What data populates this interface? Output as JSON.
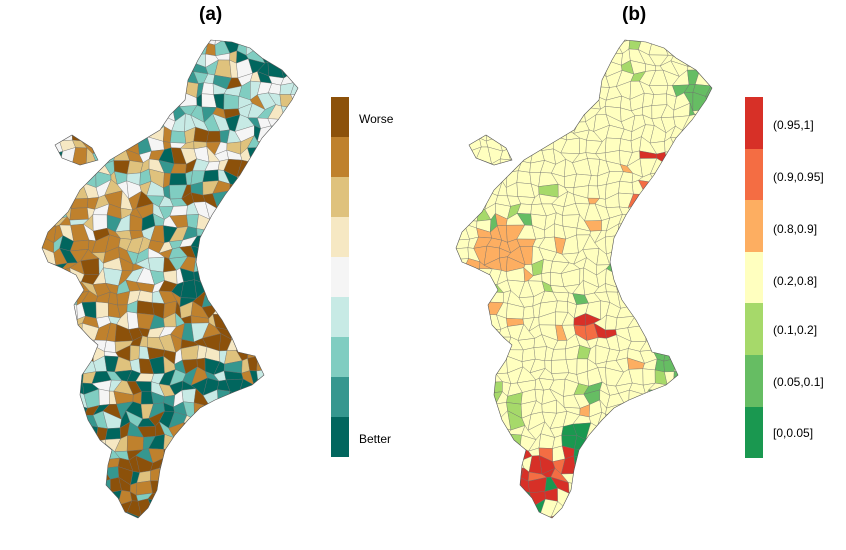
{
  "panel_a": {
    "title": "(a)",
    "legend": {
      "top_label": "Worse",
      "bottom_label": "Better",
      "colors": [
        "#8c510a",
        "#bf812d",
        "#dfc27d",
        "#f6e8c3",
        "#f5f5f5",
        "#c7eae5",
        "#80cdc1",
        "#35978f",
        "#01665e"
      ]
    }
  },
  "panel_b": {
    "title": "(b)",
    "legend": {
      "items": [
        {
          "label": "(0.95,1]",
          "color": "#d73027"
        },
        {
          "label": "(0.9,0.95]",
          "color": "#f46d43"
        },
        {
          "label": "(0.8,0.9]",
          "color": "#fdae61"
        },
        {
          "label": "(0.2,0.8]",
          "color": "#ffffbf"
        },
        {
          "label": "(0.1,0.2]",
          "color": "#a6d96a"
        },
        {
          "label": "(0.05,0.1]",
          "color": "#66bd63"
        },
        {
          "label": "[0,0.05]",
          "color": "#1a9850"
        }
      ]
    }
  }
}
